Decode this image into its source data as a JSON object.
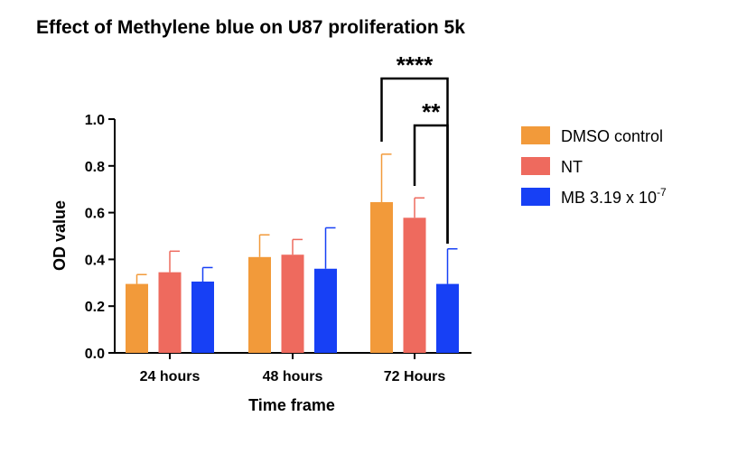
{
  "chart_data": {
    "type": "bar",
    "title": "Effect of Methylene blue  on U87 proliferation 5k",
    "xlabel": "Time frame",
    "ylabel": "OD value",
    "ylim": [
      0,
      1.0
    ],
    "yticks": [
      "0.0",
      "0.2",
      "0.4",
      "0.6",
      "0.8",
      "1.0"
    ],
    "categories": [
      "24 hours",
      "48 hours",
      "72 Hours"
    ],
    "series": [
      {
        "name": "DMSO control",
        "color": "#F29A3A",
        "values": [
          0.295,
          0.41,
          0.645
        ],
        "errors": [
          0.04,
          0.095,
          0.205
        ]
      },
      {
        "name": "NT",
        "color": "#EE6A5E",
        "values": [
          0.345,
          0.42,
          0.578
        ],
        "errors": [
          0.09,
          0.065,
          0.085
        ]
      },
      {
        "name": "MB 3.19 x 10",
        "name_superscript": "-7",
        "color": "#1740F5",
        "values": [
          0.305,
          0.36,
          0.295
        ],
        "errors": [
          0.06,
          0.175,
          0.15
        ]
      }
    ],
    "legend_position": "right",
    "grid": false,
    "significance": [
      {
        "label": "****",
        "category": "72 Hours",
        "from_series": 0,
        "to_series": 2
      },
      {
        "label": "**",
        "category": "72 Hours",
        "from_series": 1,
        "to_series": 2
      }
    ]
  }
}
